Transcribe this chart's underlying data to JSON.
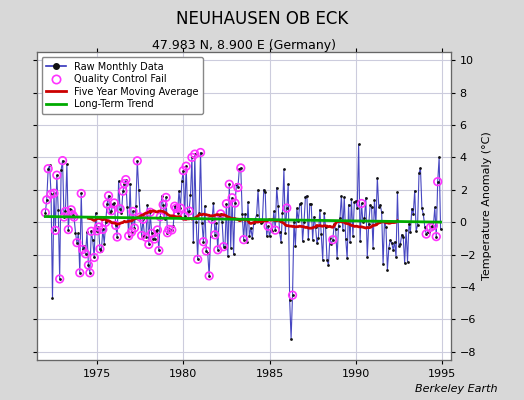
{
  "title": "NEUHAUSEN OB ECK",
  "subtitle": "47.983 N, 8.900 E (Germany)",
  "ylabel": "Temperature Anomaly (°C)",
  "credit": "Berkeley Earth",
  "xlim": [
    1971.5,
    1995.5
  ],
  "ylim": [
    -8.5,
    10.5
  ],
  "yticks": [
    -8,
    -6,
    -4,
    -2,
    0,
    2,
    4,
    6,
    8,
    10
  ],
  "xticks": [
    1975,
    1980,
    1985,
    1990,
    1995
  ],
  "background_color": "#d8d8d8",
  "plot_bg_color": "#ffffff",
  "grid_color": "#ccccdd",
  "line_color": "#3333bb",
  "dot_color": "#111111",
  "qc_color": "#ff33ff",
  "moving_avg_color": "#cc0000",
  "trend_color": "#00aa00",
  "legend_labels": [
    "Raw Monthly Data",
    "Quality Control Fail",
    "Five Year Moving Average",
    "Long-Term Trend"
  ],
  "title_fontsize": 12,
  "subtitle_fontsize": 9,
  "ylabel_fontsize": 8,
  "tick_fontsize": 8,
  "credit_fontsize": 8
}
